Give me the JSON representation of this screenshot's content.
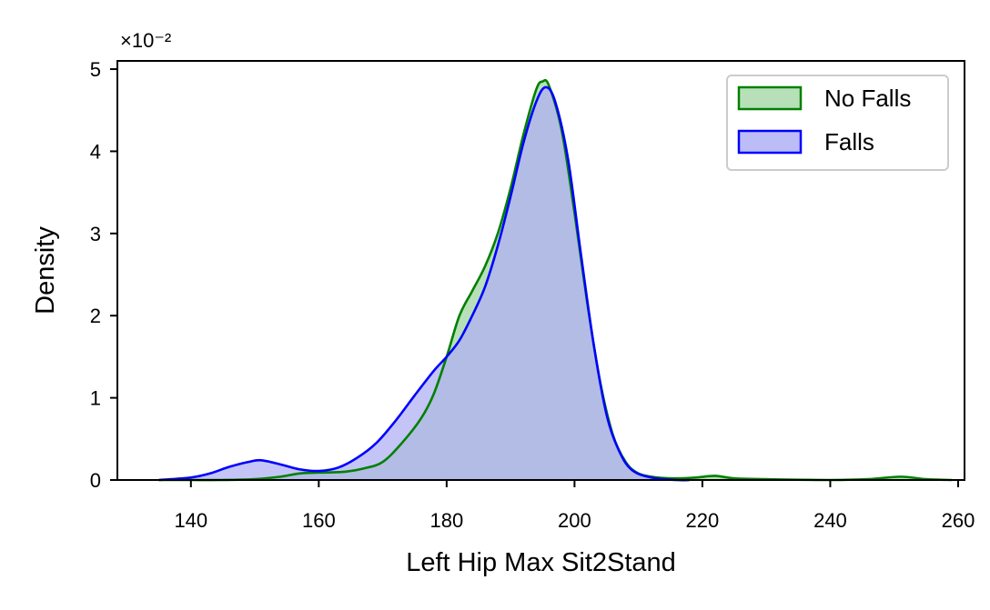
{
  "chart_data": {
    "type": "area",
    "title": "",
    "xlabel": "Left Hip Max Sit2Stand",
    "ylabel": "Density",
    "y_multiplier_label": "×10⁻²",
    "xlim": [
      128.5,
      261
    ],
    "ylim": [
      0,
      5.1
    ],
    "x_ticks": [
      140,
      160,
      180,
      200,
      220,
      240,
      260
    ],
    "y_ticks": [
      0,
      1,
      2,
      3,
      4,
      5
    ],
    "grid": false,
    "legend_position": "top-right",
    "series": [
      {
        "name": "No Falls",
        "color": "#008000",
        "fill": "#b8e0b8",
        "points": [
          [
            135,
            0.0
          ],
          [
            140,
            0.0
          ],
          [
            145,
            0.0
          ],
          [
            150,
            0.01
          ],
          [
            154,
            0.04
          ],
          [
            157,
            0.08
          ],
          [
            160,
            0.09
          ],
          [
            164,
            0.1
          ],
          [
            167,
            0.14
          ],
          [
            170,
            0.22
          ],
          [
            173,
            0.45
          ],
          [
            176,
            0.75
          ],
          [
            178,
            1.05
          ],
          [
            180,
            1.5
          ],
          [
            182,
            2.0
          ],
          [
            184,
            2.3
          ],
          [
            186,
            2.6
          ],
          [
            188,
            3.0
          ],
          [
            190,
            3.55
          ],
          [
            192,
            4.2
          ],
          [
            194,
            4.75
          ],
          [
            195,
            4.85
          ],
          [
            196,
            4.8
          ],
          [
            198,
            4.25
          ],
          [
            200,
            3.25
          ],
          [
            202,
            2.15
          ],
          [
            204,
            1.2
          ],
          [
            206,
            0.55
          ],
          [
            208,
            0.22
          ],
          [
            210,
            0.08
          ],
          [
            213,
            0.03
          ],
          [
            216,
            0.02
          ],
          [
            219,
            0.03
          ],
          [
            222,
            0.05
          ],
          [
            225,
            0.02
          ],
          [
            230,
            0.01
          ],
          [
            240,
            0.0
          ],
          [
            246,
            0.01
          ],
          [
            251,
            0.04
          ],
          [
            255,
            0.01
          ],
          [
            259,
            0.0
          ]
        ]
      },
      {
        "name": "Falls",
        "color": "#0000ff",
        "fill": "#b0b0f4",
        "points": [
          [
            135,
            0.0
          ],
          [
            140,
            0.03
          ],
          [
            143,
            0.08
          ],
          [
            146,
            0.16
          ],
          [
            149,
            0.22
          ],
          [
            151,
            0.24
          ],
          [
            154,
            0.19
          ],
          [
            157,
            0.13
          ],
          [
            160,
            0.11
          ],
          [
            163,
            0.15
          ],
          [
            166,
            0.27
          ],
          [
            169,
            0.45
          ],
          [
            172,
            0.72
          ],
          [
            175,
            1.03
          ],
          [
            178,
            1.33
          ],
          [
            180,
            1.5
          ],
          [
            182,
            1.7
          ],
          [
            184,
            2.0
          ],
          [
            186,
            2.35
          ],
          [
            188,
            2.85
          ],
          [
            190,
            3.45
          ],
          [
            192,
            4.1
          ],
          [
            194,
            4.6
          ],
          [
            195.5,
            4.78
          ],
          [
            197,
            4.6
          ],
          [
            199,
            3.9
          ],
          [
            201,
            2.75
          ],
          [
            203,
            1.65
          ],
          [
            205,
            0.8
          ],
          [
            207,
            0.35
          ],
          [
            209,
            0.12
          ],
          [
            212,
            0.03
          ],
          [
            216,
            0.0
          ],
          [
            218,
            0.0
          ]
        ]
      }
    ]
  }
}
